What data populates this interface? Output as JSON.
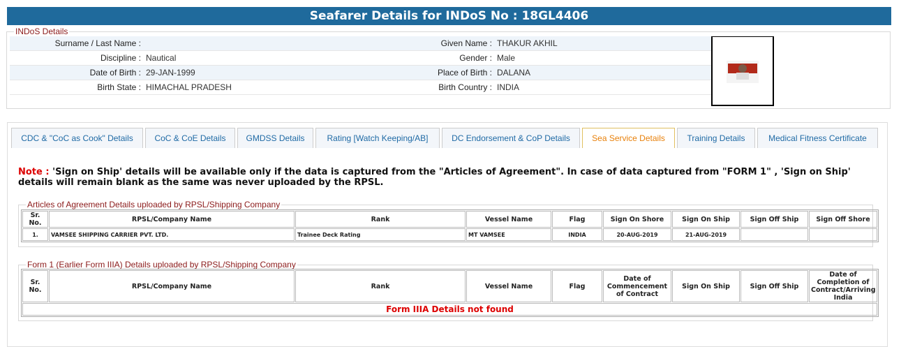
{
  "header": {
    "title": "Seafarer Details for INDoS No : 18GL4406"
  },
  "indos": {
    "legend": "INDoS Details",
    "rows": [
      [
        {
          "label": "Surname / Last Name :"
        },
        {
          "label": "Given Name :",
          "value": "THAKUR AKHIL"
        }
      ],
      [
        {
          "label": "Discipline :",
          "value": "Nautical"
        },
        {
          "label": "Gender :",
          "value": "Male"
        }
      ],
      [
        {
          "label": "Date of Birth :",
          "value": "29-JAN-1999"
        },
        {
          "label": "Place of Birth :",
          "value": "DALANA"
        }
      ],
      [
        {
          "label": "Birth State :",
          "value": "HIMACHAL PRADESH"
        },
        {
          "label": "Birth Country :",
          "value": "INDIA"
        }
      ]
    ]
  },
  "tabs": [
    "CDC & \"CoC as Cook\" Details",
    "CoC & CoE Details",
    "GMDSS Details",
    "Rating [Watch Keeping/AB]",
    "DC Endorsement & CoP Details",
    "Sea Service Details",
    "Training Details",
    "Medical Fitness Certificate"
  ],
  "note": {
    "label": "Note :",
    "text": "'Sign on Ship' details will be available only if the data is captured from the \"Articles of Agreement\". In case of data captured from \"FORM 1\" , 'Sign on Ship' details will remain blank as the same was never uploaded by the RPSL."
  },
  "articles": {
    "legend": "Articles of Agreement Details uploaded by RPSL/Shipping Company",
    "columns": [
      "Sr. No.",
      "RPSL/Company Name",
      "Rank",
      "Vessel Name",
      "Flag",
      "Sign On Shore",
      "Sign On Ship",
      "Sign Off Ship",
      "Sign Off Shore"
    ],
    "rows": [
      [
        "1.",
        "VAMSEE SHIPPING CARRIER PVT. LTD.",
        "Trainee Deck Rating",
        "MT VAMSEE",
        "INDIA",
        "20-AUG-2019",
        "21-AUG-2019"
      ]
    ]
  },
  "form1": {
    "legend": "Form 1 (Earlier Form IIIA) Details uploaded by RPSL/Shipping Company",
    "columns": [
      "Sr. No.",
      "RPSL/Company Name",
      "Rank",
      "Vessel Name",
      "Flag",
      "Date of Commencement of Contract",
      "Sign On Ship",
      "Sign Off Ship",
      "Date of Completion of Contract/Arriving India"
    ],
    "empty": "Form IIIA Details not found"
  }
}
